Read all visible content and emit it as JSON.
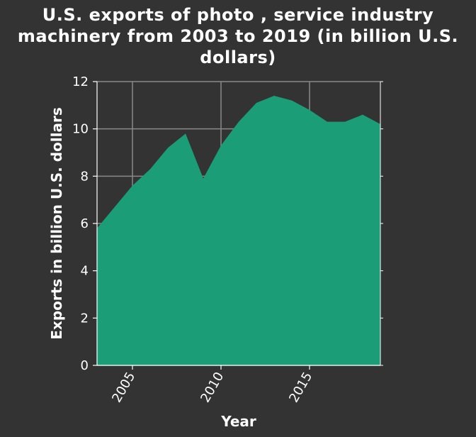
{
  "chart_data": {
    "type": "area",
    "title": "U.S. exports of photo , service industry machinery from 2003 to 2019 (in billion U.S. dollars)",
    "xlabel": "Year",
    "ylabel": "Exports in billion U.S. dollars",
    "x": [
      2003,
      2004,
      2005,
      2006,
      2007,
      2008,
      2009,
      2010,
      2011,
      2012,
      2013,
      2014,
      2015,
      2016,
      2017,
      2018,
      2019
    ],
    "values": [
      5.8,
      6.7,
      7.6,
      8.3,
      9.2,
      9.8,
      7.9,
      9.3,
      10.3,
      11.1,
      11.4,
      11.2,
      10.8,
      10.3,
      10.3,
      10.6,
      10.2
    ],
    "xlim": [
      2003,
      2019
    ],
    "ylim": [
      0,
      12
    ],
    "x_ticks": [
      2005,
      2010,
      2015
    ],
    "y_ticks": [
      0,
      2,
      4,
      6,
      8,
      10,
      12
    ],
    "grid": true,
    "colors": {
      "fill": "#1b9e77",
      "grid": "#8a8a8a",
      "background": "#333333"
    }
  }
}
